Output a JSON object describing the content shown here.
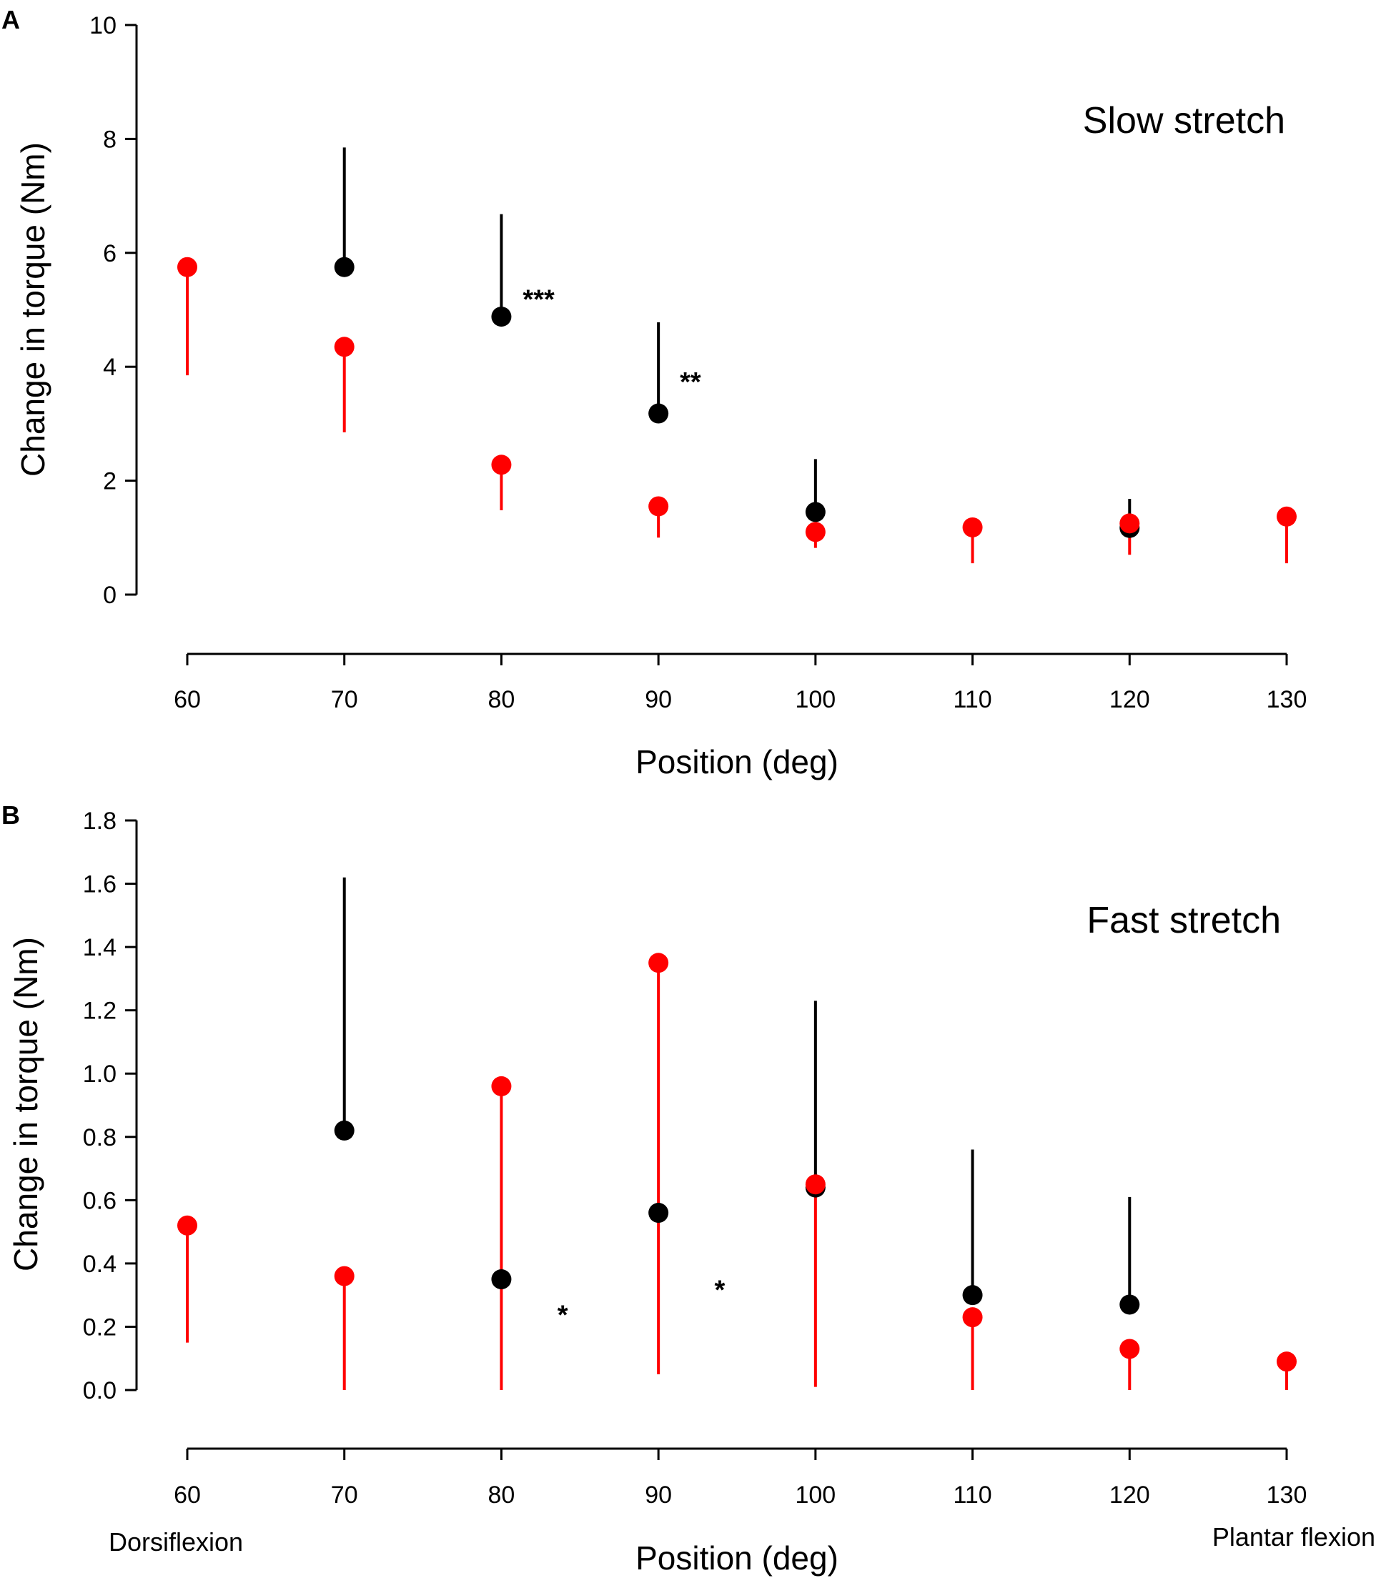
{
  "chart_data": [
    {
      "type": "scatter",
      "panel": "A",
      "annotation": "Slow stretch",
      "xlabel": "Position (deg)",
      "ylabel": "Change in torque (Nm)",
      "xlim": [
        60,
        130
      ],
      "ylim": [
        0,
        10
      ],
      "xticks": [
        "60",
        "70",
        "80",
        "90",
        "100",
        "110",
        "120",
        "130"
      ],
      "yticks": [
        "0",
        "2",
        "4",
        "6",
        "8",
        "10"
      ],
      "series": [
        {
          "name": "black",
          "color": "#000000",
          "x": [
            70,
            80,
            90,
            100,
            120
          ],
          "y": [
            5.75,
            4.88,
            3.18,
            1.45,
            1.17
          ],
          "err_dir": "up",
          "err_end": [
            7.85,
            6.68,
            4.78,
            2.38,
            1.68
          ]
        },
        {
          "name": "red",
          "color": "#ff0000",
          "x": [
            60,
            70,
            80,
            90,
            100,
            110,
            120,
            130
          ],
          "y": [
            5.75,
            4.35,
            2.28,
            1.55,
            1.1,
            1.18,
            1.25,
            1.37
          ],
          "err_dir": "down",
          "err_end": [
            3.85,
            2.85,
            1.48,
            1.0,
            0.82,
            0.55,
            0.7,
            0.55
          ]
        }
      ],
      "significance": [
        {
          "x": 80,
          "y": 5.2,
          "label": "***"
        },
        {
          "x": 90,
          "y": 3.75,
          "label": "**"
        }
      ]
    },
    {
      "type": "scatter",
      "panel": "B",
      "annotation": "Fast stretch",
      "xlabel": "Position (deg)",
      "ylabel": "Change in torque (Nm)",
      "xlim": [
        60,
        130
      ],
      "ylim": [
        0,
        1.8
      ],
      "xticks": [
        "60",
        "70",
        "80",
        "90",
        "100",
        "110",
        "120",
        "130"
      ],
      "yticks": [
        "0.0",
        "0.2",
        "0.4",
        "0.6",
        "0.8",
        "1.0",
        "1.2",
        "1.4",
        "1.6",
        "1.8"
      ],
      "x_left_label": "Dorsiflexion",
      "x_right_label": "Plantar flexion",
      "series": [
        {
          "name": "black",
          "color": "#000000",
          "x": [
            70,
            80,
            90,
            100,
            110,
            120
          ],
          "y": [
            0.82,
            0.35,
            0.56,
            0.64,
            0.3,
            0.27
          ],
          "err_dir": "up",
          "err_end": [
            1.62,
            0.35,
            0.56,
            1.23,
            0.76,
            0.61
          ]
        },
        {
          "name": "red",
          "color": "#ff0000",
          "x": [
            60,
            70,
            80,
            90,
            100,
            110,
            120,
            130
          ],
          "y": [
            0.52,
            0.36,
            0.96,
            1.35,
            0.65,
            0.23,
            0.13,
            0.09
          ],
          "err_dir": "down",
          "err_end": [
            0.15,
            0.0,
            0.0,
            0.05,
            0.01,
            0.0,
            0.0,
            0.0
          ]
        }
      ],
      "significance": [
        {
          "x": 82.2,
          "y": 0.24,
          "label": "*"
        },
        {
          "x": 92.2,
          "y": 0.32,
          "label": "*"
        }
      ]
    }
  ]
}
